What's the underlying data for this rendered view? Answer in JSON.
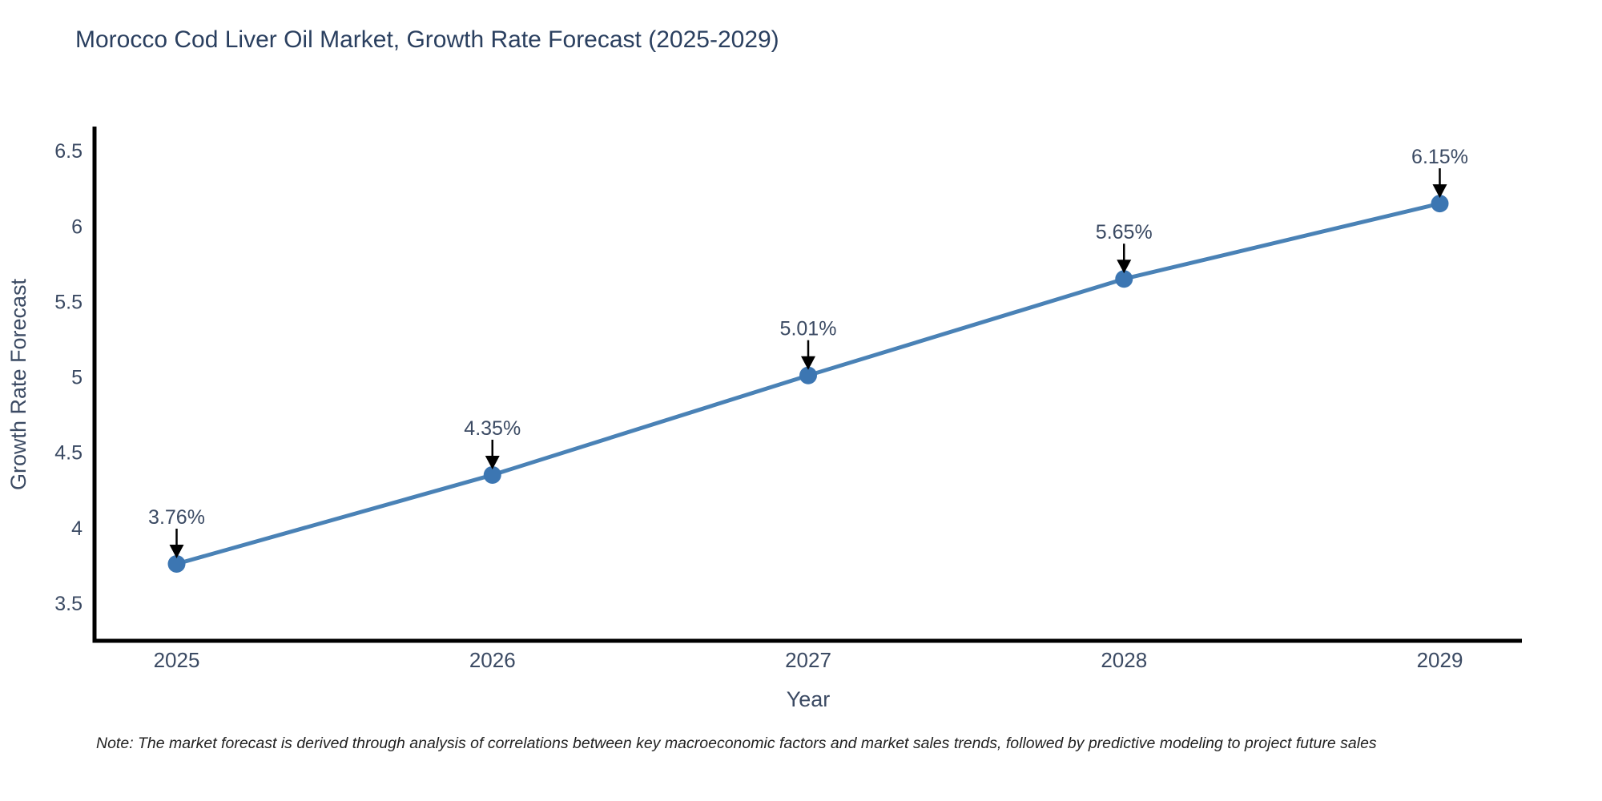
{
  "note": "Note: The market forecast is derived through analysis of correlations between key macroeconomic factors and market sales trends, followed by predictive modeling to project future sales",
  "chart_data": {
    "type": "line",
    "title": "Morocco Cod Liver Oil Market, Growth Rate Forecast (2025-2029)",
    "xlabel": "Year",
    "ylabel": "Growth Rate Forecast",
    "x": [
      2025,
      2026,
      2027,
      2028,
      2029
    ],
    "values": [
      3.76,
      4.35,
      5.01,
      5.65,
      6.15
    ],
    "point_labels": [
      "3.76%",
      "4.35%",
      "5.01%",
      "5.65%",
      "6.15%"
    ],
    "x_tick_labels": [
      "2025",
      "2026",
      "2027",
      "2028",
      "2029"
    ],
    "y_ticks": [
      3.5,
      4,
      4.5,
      5,
      5.5,
      6,
      6.5
    ],
    "y_tick_labels": [
      "3.5",
      "4",
      "4.5",
      "5",
      "5.5",
      "6",
      "6.5"
    ],
    "xlim": [
      2024.74,
      2029.26
    ],
    "ylim": [
      3.25,
      6.65
    ],
    "grid": false,
    "legend": "none",
    "line_color": "#4a82b6",
    "marker_color": "#3c76b2",
    "axis_color": "#000000",
    "text_color": "#3b4a63",
    "annotation_arrow_color": "#000000"
  }
}
